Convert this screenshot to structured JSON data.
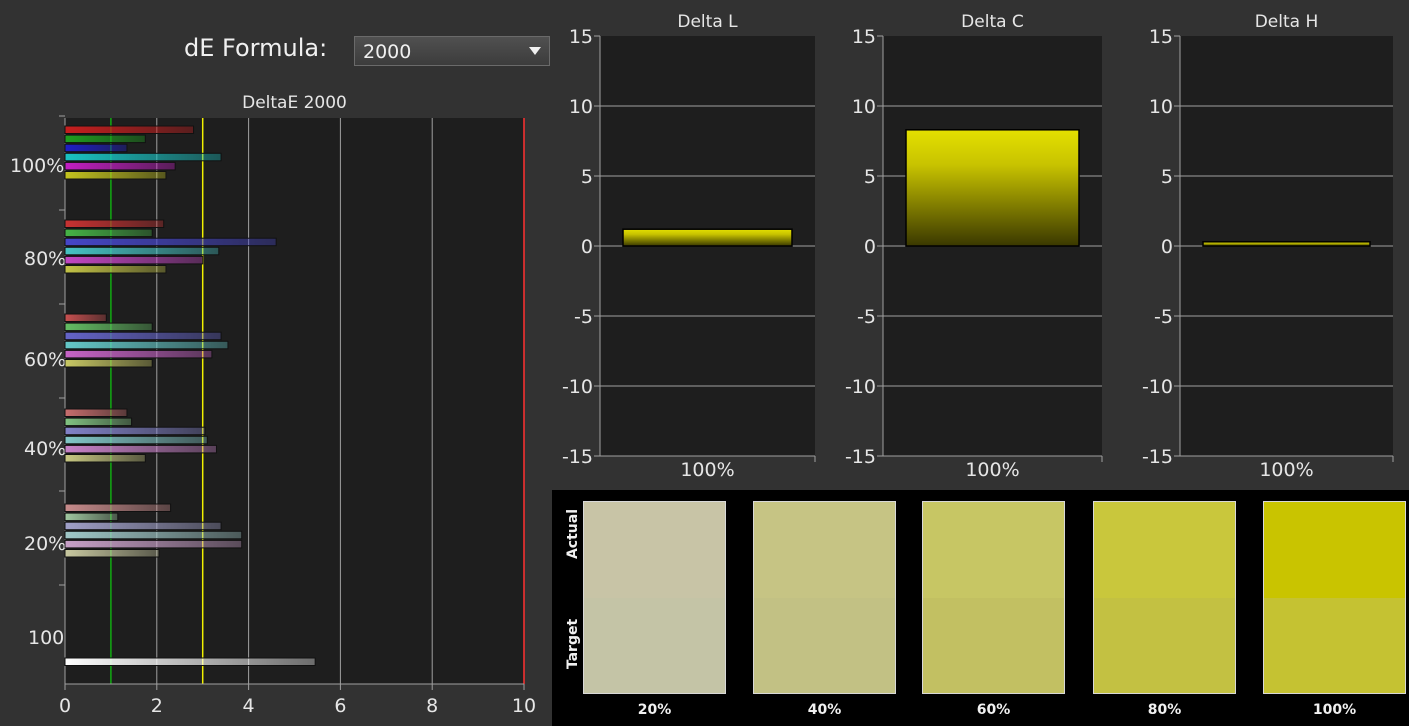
{
  "formula": {
    "label": "dE Formula:",
    "value": "2000",
    "icon": "chevron-down-icon"
  },
  "colors": {
    "background": "#323232",
    "plot_bg": "#1e1e1e",
    "grid": "#a0a0a0",
    "threshold_green": "#11aa11",
    "threshold_yellow": "#f0f000",
    "threshold_red": "#ff3030",
    "bar_yellow": "#c8c300"
  },
  "chart_data": [
    {
      "type": "bar",
      "orientation": "horizontal",
      "title": "DeltaE 2000",
      "xlim": [
        0,
        10
      ],
      "xticks": [
        "0",
        "2",
        "4",
        "6",
        "8",
        "10"
      ],
      "grid": true,
      "thresholds": [
        1,
        3,
        10
      ],
      "groups": [
        {
          "label": "100%",
          "values": [
            2.8,
            1.75,
            1.35,
            3.4,
            2.4,
            2.2
          ],
          "colors": [
            "#c81e1e",
            "#1ea01e",
            "#1e1ec8",
            "#19c3c3",
            "#c31ec3",
            "#c3c31e"
          ]
        },
        {
          "label": "80%",
          "values": [
            2.15,
            1.9,
            4.6,
            3.35,
            3.0,
            2.2
          ],
          "colors": [
            "#c83232",
            "#46b446",
            "#4646c8",
            "#46c3c3",
            "#c346c3",
            "#c3c346"
          ]
        },
        {
          "label": "60%",
          "values": [
            0.9,
            1.9,
            3.4,
            3.55,
            3.2,
            1.9
          ],
          "colors": [
            "#c85050",
            "#64be64",
            "#6464c8",
            "#64c8c8",
            "#c864c8",
            "#c8c864"
          ]
        },
        {
          "label": "40%",
          "values": [
            1.35,
            1.45,
            3.05,
            3.1,
            3.3,
            1.75
          ],
          "colors": [
            "#c86e6e",
            "#82c382",
            "#8282c8",
            "#82c8c8",
            "#c882c8",
            "#c8c882"
          ]
        },
        {
          "label": "20%",
          "values": [
            2.3,
            1.15,
            3.4,
            3.85,
            3.85,
            2.05
          ],
          "colors": [
            "#c88c8c",
            "#a0c8a0",
            "#a0a0c8",
            "#a0c8c8",
            "#c8a0c8",
            "#c8c8a0"
          ]
        },
        {
          "label": "100",
          "values": [
            5.45
          ],
          "colors": [
            "#ffffff"
          ]
        }
      ]
    },
    {
      "type": "bar",
      "title": "Delta L",
      "categories": [
        "100%"
      ],
      "values": [
        1.2
      ],
      "ylim": [
        -15,
        15
      ],
      "yticks": [
        "15",
        "10",
        "5",
        "0",
        "-5",
        "-10",
        "-15"
      ],
      "grid": true
    },
    {
      "type": "bar",
      "title": "Delta C",
      "categories": [
        "100%"
      ],
      "values": [
        8.3
      ],
      "ylim": [
        -15,
        15
      ],
      "yticks": [
        "15",
        "10",
        "5",
        "0",
        "-5",
        "-10",
        "-15"
      ],
      "grid": true
    },
    {
      "type": "bar",
      "title": "Delta H",
      "categories": [
        "100%"
      ],
      "values": [
        0.3
      ],
      "ylim": [
        -15,
        15
      ],
      "yticks": [
        "15",
        "10",
        "5",
        "0",
        "-5",
        "-10",
        "-15"
      ],
      "grid": true
    }
  ],
  "swatches": {
    "actual_label": "Actual",
    "target_label": "Target",
    "items": [
      {
        "label": "20%",
        "actual": "#c8c4a6",
        "target": "#c4c4a6"
      },
      {
        "label": "40%",
        "actual": "#c6c484",
        "target": "#c2c184"
      },
      {
        "label": "60%",
        "actual": "#c7c664",
        "target": "#c2c062"
      },
      {
        "label": "80%",
        "actual": "#c9c73c",
        "target": "#c3c142"
      },
      {
        "label": "100%",
        "actual": "#c9c400",
        "target": "#c5c232"
      }
    ]
  }
}
